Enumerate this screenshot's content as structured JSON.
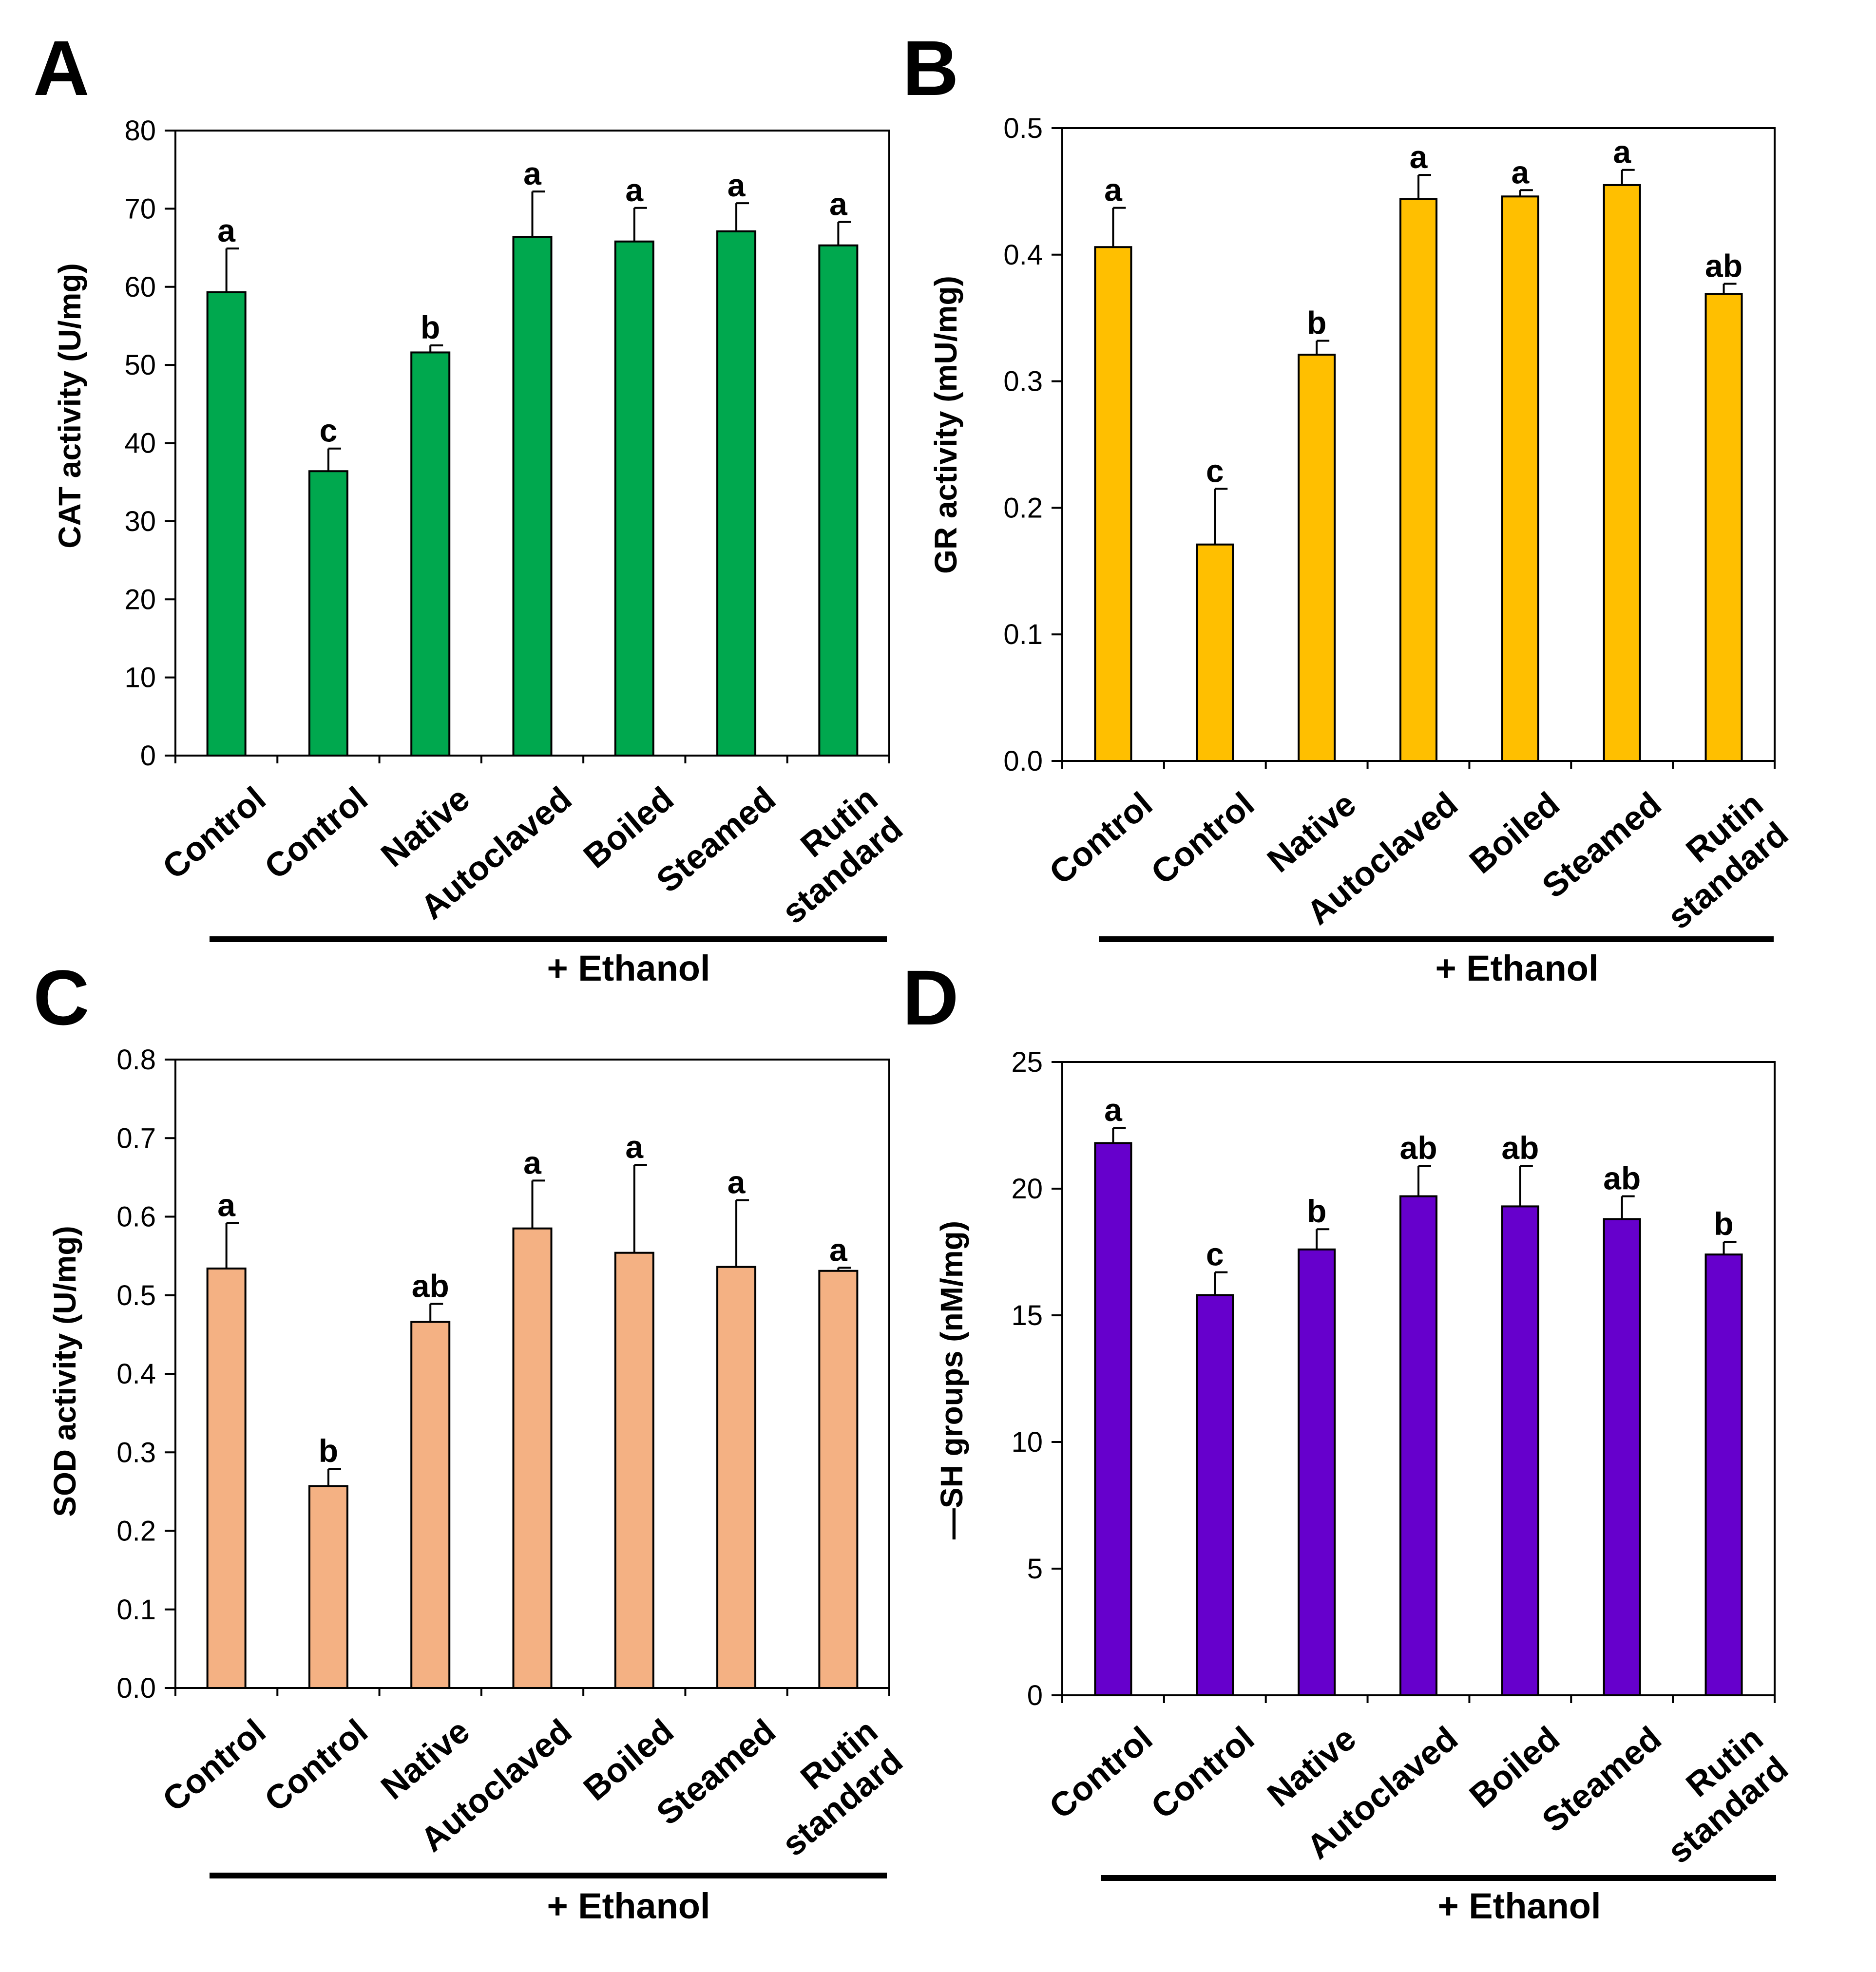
{
  "chart_data": [
    {
      "type": "bar",
      "panel": "A",
      "categories": [
        "Control",
        "Control",
        "Native",
        "Autoclaved",
        "Boiled",
        "Steamed",
        "Rutin standard"
      ],
      "category_lines": [
        [
          "Control"
        ],
        [
          "Control"
        ],
        [
          "Native"
        ],
        [
          "Autoclaved"
        ],
        [
          "Boiled"
        ],
        [
          "Steamed"
        ],
        [
          "Rutin",
          "standard"
        ]
      ],
      "values": [
        59.3,
        36.4,
        51.6,
        66.4,
        65.8,
        67.1,
        65.3
      ],
      "errors": [
        5.6,
        2.9,
        0.9,
        5.8,
        4.3,
        3.6,
        3.0
      ],
      "significance": [
        "a",
        "c",
        "b",
        "a",
        "a",
        "a",
        "a"
      ],
      "ylabel": "CAT activity (U/mg)",
      "ylim": [
        0,
        80
      ],
      "yticks": [
        0,
        10,
        20,
        30,
        40,
        50,
        60,
        70,
        80
      ],
      "ytick_labels": [
        "0",
        "10",
        "20",
        "30",
        "40",
        "50",
        "60",
        "70",
        "80"
      ],
      "bar_color": "#00A84E",
      "group_label": "+ Ethanol",
      "group_start_index": 1
    },
    {
      "type": "bar",
      "panel": "B",
      "categories": [
        "Control",
        "Control",
        "Native",
        "Autoclaved",
        "Boiled",
        "Steamed",
        "Rutin standard"
      ],
      "category_lines": [
        [
          "Control"
        ],
        [
          "Control"
        ],
        [
          "Native"
        ],
        [
          "Autoclaved"
        ],
        [
          "Boiled"
        ],
        [
          "Steamed"
        ],
        [
          "Rutin",
          "standard"
        ]
      ],
      "values": [
        0.406,
        0.171,
        0.321,
        0.444,
        0.446,
        0.455,
        0.369
      ],
      "errors": [
        0.031,
        0.044,
        0.011,
        0.019,
        0.005,
        0.012,
        0.008
      ],
      "significance": [
        "a",
        "c",
        "b",
        "a",
        "a",
        "a",
        "ab"
      ],
      "ylabel": "GR activity (mU/mg)",
      "ylim": [
        0,
        0.5
      ],
      "yticks": [
        0,
        0.1,
        0.2,
        0.3,
        0.4,
        0.5
      ],
      "ytick_labels": [
        "0.0",
        "0.1",
        "0.2",
        "0.3",
        "0.4",
        "0.5"
      ],
      "bar_color": "#FFBF00",
      "group_label": "+ Ethanol",
      "group_start_index": 1
    },
    {
      "type": "bar",
      "panel": "C",
      "categories": [
        "Control",
        "Control",
        "Native",
        "Autoclaved",
        "Boiled",
        "Steamed",
        "Rutin standard"
      ],
      "category_lines": [
        [
          "Control"
        ],
        [
          "Control"
        ],
        [
          "Native"
        ],
        [
          "Autoclaved"
        ],
        [
          "Boiled"
        ],
        [
          "Steamed"
        ],
        [
          "Rutin",
          "standard"
        ]
      ],
      "values": [
        0.534,
        0.257,
        0.466,
        0.585,
        0.554,
        0.536,
        0.531
      ],
      "errors": [
        0.058,
        0.022,
        0.023,
        0.061,
        0.112,
        0.085,
        0.004
      ],
      "significance": [
        "a",
        "b",
        "ab",
        "a",
        "a",
        "a",
        "a"
      ],
      "ylabel": "SOD activity (U/mg)",
      "ylim": [
        0,
        0.8
      ],
      "yticks": [
        0,
        0.1,
        0.2,
        0.3,
        0.4,
        0.5,
        0.6,
        0.7,
        0.8
      ],
      "ytick_labels": [
        "0.0",
        "0.1",
        "0.2",
        "0.3",
        "0.4",
        "0.5",
        "0.6",
        "0.7",
        "0.8"
      ],
      "bar_color": "#F4B183",
      "group_label": "+ Ethanol",
      "group_start_index": 1
    },
    {
      "type": "bar",
      "panel": "D",
      "categories": [
        "Control",
        "Control",
        "Native",
        "Autoclaved",
        "Boiled",
        "Steamed",
        "Rutin standard"
      ],
      "category_lines": [
        [
          "Control"
        ],
        [
          "Control"
        ],
        [
          "Native"
        ],
        [
          "Autoclaved"
        ],
        [
          "Boiled"
        ],
        [
          "Steamed"
        ],
        [
          "Rutin",
          "standard"
        ]
      ],
      "values": [
        21.8,
        15.8,
        17.6,
        19.7,
        19.3,
        18.8,
        17.4
      ],
      "errors": [
        0.6,
        0.9,
        0.8,
        1.2,
        1.6,
        0.9,
        0.5
      ],
      "significance": [
        "a",
        "c",
        "b",
        "ab",
        "ab",
        "ab",
        "b"
      ],
      "ylabel": "—SH groups (nM/mg)",
      "ylim": [
        0,
        25
      ],
      "yticks": [
        0,
        5,
        10,
        15,
        20,
        25
      ],
      "ytick_labels": [
        "0",
        "5",
        "10",
        "15",
        "20",
        "25"
      ],
      "bar_color": "#6600CC",
      "group_label": "+ Ethanol",
      "group_start_index": 1
    }
  ]
}
